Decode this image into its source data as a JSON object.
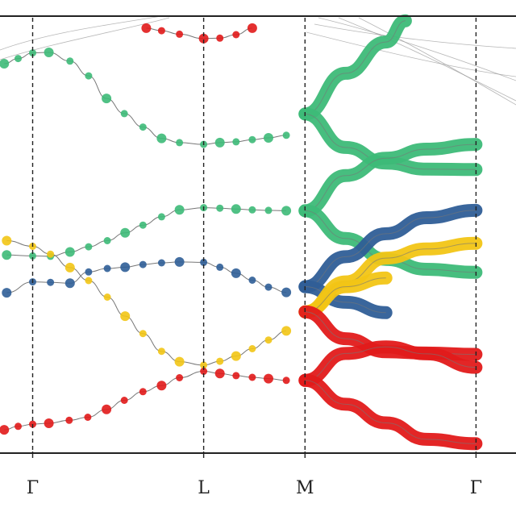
{
  "chart_data": {
    "type": "scatter",
    "title": "",
    "xlabel": "",
    "ylabel": "",
    "xlim": [
      -0.24,
      3.55
    ],
    "ylim": [
      0,
      1
    ],
    "grid": false,
    "x_ticks": [
      {
        "label": "Γ",
        "x": 0
      },
      {
        "label": "L",
        "x": 1.256
      },
      {
        "label": "M",
        "x": 2.0
      },
      {
        "label": "Γ",
        "x": 3.256
      }
    ],
    "colors": {
      "green": "#3dba78",
      "blue": "#2f5e97",
      "yellow": "#f2c515",
      "red": "#e11a1a",
      "line": "#777777",
      "background_band": "#999999"
    },
    "series": [
      {
        "color_key": "green",
        "style": "dots",
        "points": [
          {
            "x": -0.209,
            "y": 0.894,
            "w": 6
          },
          {
            "x": -0.107,
            "y": 0.906,
            "w": 6
          },
          {
            "x": 0,
            "y": 0.919,
            "w": 6
          },
          {
            "x": 0.119,
            "y": 0.92,
            "w": 6
          },
          {
            "x": 0.274,
            "y": 0.9,
            "w": 6
          },
          {
            "x": 0.411,
            "y": 0.866,
            "w": 6
          },
          {
            "x": 0.542,
            "y": 0.814,
            "w": 6
          },
          {
            "x": 0.673,
            "y": 0.779,
            "w": 6
          },
          {
            "x": 0.81,
            "y": 0.748,
            "w": 6
          },
          {
            "x": 0.947,
            "y": 0.722,
            "w": 6
          },
          {
            "x": 1.078,
            "y": 0.712,
            "w": 6
          },
          {
            "x": 1.256,
            "y": 0.708,
            "w": 6
          },
          {
            "x": 1.375,
            "y": 0.712,
            "w": 6
          },
          {
            "x": 1.494,
            "y": 0.714,
            "w": 6
          },
          {
            "x": 1.613,
            "y": 0.719,
            "w": 6
          },
          {
            "x": 1.732,
            "y": 0.723,
            "w": 6
          },
          {
            "x": 1.863,
            "y": 0.729,
            "w": 6
          }
        ]
      },
      {
        "color_key": "green",
        "style": "dots",
        "points": [
          {
            "x": -0.191,
            "y": 0.453,
            "w": 6
          },
          {
            "x": 0,
            "y": 0.451,
            "w": 6
          },
          {
            "x": 0.131,
            "y": 0.45,
            "w": 6
          },
          {
            "x": 0.274,
            "y": 0.46,
            "w": 6
          },
          {
            "x": 0.411,
            "y": 0.472,
            "w": 6
          },
          {
            "x": 0.548,
            "y": 0.486,
            "w": 6
          },
          {
            "x": 0.679,
            "y": 0.504,
            "w": 6
          },
          {
            "x": 0.81,
            "y": 0.522,
            "w": 6
          },
          {
            "x": 0.947,
            "y": 0.541,
            "w": 6
          },
          {
            "x": 1.078,
            "y": 0.557,
            "w": 6
          },
          {
            "x": 1.256,
            "y": 0.562,
            "w": 6
          },
          {
            "x": 1.375,
            "y": 0.561,
            "w": 6
          },
          {
            "x": 1.494,
            "y": 0.559,
            "w": 6
          },
          {
            "x": 1.613,
            "y": 0.557,
            "w": 6
          },
          {
            "x": 1.732,
            "y": 0.556,
            "w": 6
          },
          {
            "x": 1.863,
            "y": 0.555,
            "w": 6
          }
        ]
      },
      {
        "color_key": "blue",
        "style": "dots",
        "points": [
          {
            "x": -0.191,
            "y": 0.366,
            "w": 6
          },
          {
            "x": 0,
            "y": 0.391,
            "w": 6
          },
          {
            "x": 0.131,
            "y": 0.39,
            "w": 6
          },
          {
            "x": 0.274,
            "y": 0.388,
            "w": 6
          },
          {
            "x": 0.411,
            "y": 0.414,
            "w": 6
          },
          {
            "x": 0.548,
            "y": 0.422,
            "w": 6
          },
          {
            "x": 0.679,
            "y": 0.425,
            "w": 6
          },
          {
            "x": 0.81,
            "y": 0.431,
            "w": 6
          },
          {
            "x": 0.947,
            "y": 0.435,
            "w": 6
          },
          {
            "x": 1.078,
            "y": 0.437,
            "w": 6
          },
          {
            "x": 1.256,
            "y": 0.436,
            "w": 6
          },
          {
            "x": 1.375,
            "y": 0.425,
            "w": 6
          },
          {
            "x": 1.494,
            "y": 0.411,
            "w": 6
          },
          {
            "x": 1.613,
            "y": 0.395,
            "w": 6
          },
          {
            "x": 1.732,
            "y": 0.379,
            "w": 6
          },
          {
            "x": 1.863,
            "y": 0.367,
            "w": 6
          }
        ]
      },
      {
        "color_key": "yellow",
        "style": "dots",
        "points": [
          {
            "x": -0.191,
            "y": 0.486,
            "w": 6
          },
          {
            "x": 0,
            "y": 0.473,
            "w": 6
          },
          {
            "x": 0.131,
            "y": 0.455,
            "w": 6
          },
          {
            "x": 0.274,
            "y": 0.424,
            "w": 6
          },
          {
            "x": 0.411,
            "y": 0.394,
            "w": 6
          },
          {
            "x": 0.548,
            "y": 0.356,
            "w": 6
          },
          {
            "x": 0.679,
            "y": 0.312,
            "w": 6
          },
          {
            "x": 0.81,
            "y": 0.272,
            "w": 6
          },
          {
            "x": 0.947,
            "y": 0.231,
            "w": 6
          },
          {
            "x": 1.078,
            "y": 0.207,
            "w": 6
          },
          {
            "x": 1.256,
            "y": 0.199,
            "w": 6
          },
          {
            "x": 1.375,
            "y": 0.208,
            "w": 6
          },
          {
            "x": 1.494,
            "y": 0.22,
            "w": 6
          },
          {
            "x": 1.613,
            "y": 0.237,
            "w": 6
          },
          {
            "x": 1.732,
            "y": 0.257,
            "w": 6
          },
          {
            "x": 1.863,
            "y": 0.278,
            "w": 6
          }
        ]
      },
      {
        "color_key": "red",
        "style": "dots",
        "points": [
          {
            "x": -0.209,
            "y": 0.05,
            "w": 6
          },
          {
            "x": -0.107,
            "y": 0.058,
            "w": 6
          },
          {
            "x": 0,
            "y": 0.063,
            "w": 6
          },
          {
            "x": 0.119,
            "y": 0.065,
            "w": 6
          },
          {
            "x": 0.268,
            "y": 0.072,
            "w": 6
          },
          {
            "x": 0.405,
            "y": 0.079,
            "w": 6
          },
          {
            "x": 0.542,
            "y": 0.097,
            "w": 6
          },
          {
            "x": 0.673,
            "y": 0.118,
            "w": 6
          },
          {
            "x": 0.81,
            "y": 0.138,
            "w": 6
          },
          {
            "x": 0.947,
            "y": 0.152,
            "w": 6
          },
          {
            "x": 1.078,
            "y": 0.17,
            "w": 6
          },
          {
            "x": 1.256,
            "y": 0.185,
            "w": 6
          },
          {
            "x": 1.375,
            "y": 0.18,
            "w": 6
          },
          {
            "x": 1.494,
            "y": 0.175,
            "w": 6
          },
          {
            "x": 1.613,
            "y": 0.171,
            "w": 6
          },
          {
            "x": 1.732,
            "y": 0.168,
            "w": 6
          },
          {
            "x": 1.863,
            "y": 0.164,
            "w": 6
          }
        ]
      },
      {
        "color_key": "red",
        "style": "dots",
        "points": [
          {
            "x": 0.834,
            "y": 0.976,
            "w": 6
          },
          {
            "x": 0.947,
            "y": 0.97,
            "w": 6
          },
          {
            "x": 1.078,
            "y": 0.962,
            "w": 6
          },
          {
            "x": 1.256,
            "y": 0.952,
            "w": 6
          },
          {
            "x": 1.375,
            "y": 0.953,
            "w": 6
          },
          {
            "x": 1.494,
            "y": 0.961,
            "w": 6
          },
          {
            "x": 1.613,
            "y": 0.976,
            "w": 6
          }
        ]
      },
      {
        "color_key": "green",
        "style": "band",
        "points": [
          {
            "x": 2.0,
            "y": 0.778,
            "w": 6
          },
          {
            "x": 2.298,
            "y": 0.872,
            "w": 6
          },
          {
            "x": 2.595,
            "y": 0.944,
            "w": 6
          },
          {
            "x": 2.738,
            "y": 0.993,
            "w": 6
          }
        ]
      },
      {
        "color_key": "green",
        "style": "band",
        "points": [
          {
            "x": 2.0,
            "y": 0.778,
            "w": 6
          },
          {
            "x": 2.298,
            "y": 0.701,
            "w": 6
          },
          {
            "x": 2.595,
            "y": 0.665,
            "w": 6
          },
          {
            "x": 2.893,
            "y": 0.651,
            "w": 6
          },
          {
            "x": 3.256,
            "y": 0.65,
            "w": 6
          }
        ]
      },
      {
        "color_key": "green",
        "style": "band",
        "points": [
          {
            "x": 2.0,
            "y": 0.555,
            "w": 6
          },
          {
            "x": 2.298,
            "y": 0.636,
            "w": 6
          },
          {
            "x": 2.595,
            "y": 0.676,
            "w": 6
          },
          {
            "x": 2.893,
            "y": 0.697,
            "w": 6
          },
          {
            "x": 3.256,
            "y": 0.708,
            "w": 6
          }
        ]
      },
      {
        "color_key": "green",
        "style": "band",
        "points": [
          {
            "x": 2.0,
            "y": 0.555,
            "w": 6
          },
          {
            "x": 2.298,
            "y": 0.491,
            "w": 6
          },
          {
            "x": 2.595,
            "y": 0.443,
            "w": 6
          },
          {
            "x": 2.893,
            "y": 0.42,
            "w": 6
          },
          {
            "x": 3.256,
            "y": 0.413,
            "w": 6
          }
        ]
      },
      {
        "color_key": "blue",
        "style": "band",
        "points": [
          {
            "x": 2.0,
            "y": 0.38,
            "w": 6
          },
          {
            "x": 2.298,
            "y": 0.449,
            "w": 6
          },
          {
            "x": 2.595,
            "y": 0.502,
            "w": 6
          },
          {
            "x": 2.893,
            "y": 0.539,
            "w": 6
          },
          {
            "x": 3.256,
            "y": 0.556,
            "w": 6
          }
        ]
      },
      {
        "color_key": "blue",
        "style": "band",
        "points": [
          {
            "x": 2.0,
            "y": 0.38,
            "w": 6
          },
          {
            "x": 2.298,
            "y": 0.344,
            "w": 6
          },
          {
            "x": 2.595,
            "y": 0.32,
            "w": 6
          }
        ]
      },
      {
        "color_key": "yellow",
        "style": "band",
        "points": [
          {
            "x": 2.0,
            "y": 0.322,
            "w": 6
          },
          {
            "x": 2.298,
            "y": 0.391,
            "w": 6
          },
          {
            "x": 2.595,
            "y": 0.446,
            "w": 6
          },
          {
            "x": 2.893,
            "y": 0.467,
            "w": 6
          },
          {
            "x": 3.256,
            "y": 0.48,
            "w": 6
          }
        ]
      },
      {
        "color_key": "yellow",
        "style": "band",
        "points": [
          {
            "x": 2.0,
            "y": 0.322,
            "w": 6
          },
          {
            "x": 2.298,
            "y": 0.38,
            "w": 6
          },
          {
            "x": 2.595,
            "y": 0.4,
            "w": 6
          }
        ]
      },
      {
        "color_key": "red",
        "style": "band",
        "points": [
          {
            "x": 2.0,
            "y": 0.322,
            "w": 6
          },
          {
            "x": 2.298,
            "y": 0.26,
            "w": 6
          },
          {
            "x": 2.595,
            "y": 0.23,
            "w": 6
          },
          {
            "x": 2.893,
            "y": 0.227,
            "w": 6
          },
          {
            "x": 3.256,
            "y": 0.224,
            "w": 6
          }
        ]
      },
      {
        "color_key": "red",
        "style": "band",
        "points": [
          {
            "x": 2.0,
            "y": 0.164,
            "w": 6
          },
          {
            "x": 2.298,
            "y": 0.226,
            "w": 6
          },
          {
            "x": 2.595,
            "y": 0.241,
            "w": 6
          },
          {
            "x": 2.893,
            "y": 0.225,
            "w": 6
          },
          {
            "x": 3.256,
            "y": 0.194,
            "w": 6
          }
        ]
      },
      {
        "color_key": "red",
        "style": "band",
        "points": [
          {
            "x": 2.0,
            "y": 0.164,
            "w": 6
          },
          {
            "x": 2.298,
            "y": 0.109,
            "w": 6
          },
          {
            "x": 2.595,
            "y": 0.066,
            "w": 6
          },
          {
            "x": 2.893,
            "y": 0.028,
            "w": 6
          },
          {
            "x": 3.256,
            "y": 0.018,
            "w": 6
          }
        ]
      }
    ]
  }
}
